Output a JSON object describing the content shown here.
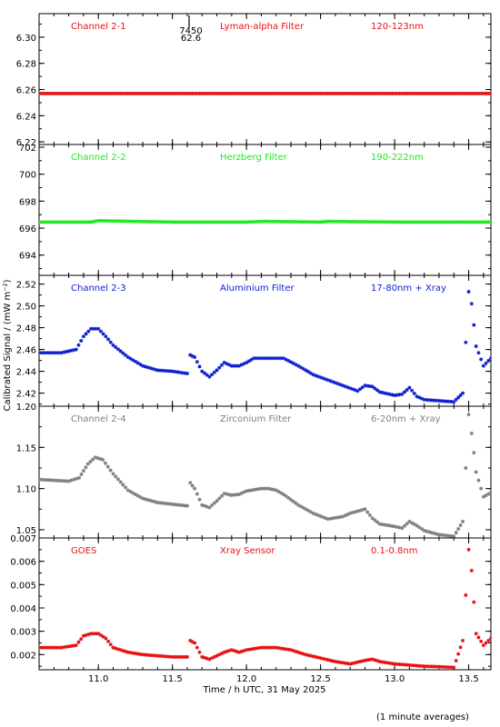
{
  "figure": {
    "ylabel": "Calibrated Signal / (mW m⁻²)",
    "xlabel": "Time / h UTC, 31 May 2025",
    "footnote": "(1 minute averages)",
    "marker_annotation": [
      "7450",
      "62.6"
    ]
  },
  "chart_data": [
    {
      "type": "scatter",
      "panel": "Channel 2-1",
      "labels": [
        "Channel 2-1",
        "Lyman-alpha Filter",
        "120-123nm"
      ],
      "color": "#e81010",
      "xlim": [
        10.6,
        13.65
      ],
      "ylim": [
        6.218,
        6.318
      ],
      "yticks": [
        6.22,
        6.24,
        6.26,
        6.28,
        6.3
      ],
      "yticklabels": [
        "6.22",
        "6.24",
        "6.26",
        "6.28",
        "6.30"
      ],
      "series": [
        {
          "x": [
            10.6,
            11.0,
            11.5,
            12.0,
            12.5,
            13.0,
            13.5,
            13.65
          ],
          "y": [
            6.257,
            6.257,
            6.257,
            6.257,
            6.257,
            6.257,
            6.257,
            6.257
          ]
        }
      ]
    },
    {
      "type": "scatter",
      "panel": "Channel 2-2",
      "labels": [
        "Channel 2-2",
        "Herzberg Filter",
        "190-222nm"
      ],
      "color": "#20e820",
      "xlim": [
        10.6,
        13.65
      ],
      "ylim": [
        692.5,
        702.2
      ],
      "yticks": [
        694,
        696,
        698,
        700,
        702
      ],
      "yticklabels": [
        "694",
        "696",
        "698",
        "700",
        "702"
      ],
      "series": [
        {
          "x": [
            10.6,
            10.95,
            11.0,
            11.5,
            12.0,
            12.12,
            12.5,
            12.55,
            13.0,
            13.5,
            13.65
          ],
          "y": [
            696.45,
            696.45,
            696.55,
            696.45,
            696.45,
            696.5,
            696.45,
            696.5,
            696.45,
            696.45,
            696.45
          ]
        }
      ]
    },
    {
      "type": "scatter",
      "panel": "Channel 2-3",
      "labels": [
        "Channel 2-3",
        "Aluminium Filter",
        "17-80nm + Xray"
      ],
      "color": "#1020d0",
      "xlim": [
        10.6,
        13.65
      ],
      "ylim": [
        2.408,
        2.528
      ],
      "yticks": [
        2.42,
        2.44,
        2.46,
        2.48,
        2.5,
        2.52
      ],
      "yticklabels": [
        "2.42",
        "2.44",
        "2.46",
        "2.48",
        "2.50",
        "2.52"
      ],
      "series": [
        {
          "x": [
            10.6,
            10.75,
            10.85,
            10.9,
            10.95,
            11.0,
            11.05,
            11.1,
            11.2,
            11.3,
            11.4,
            11.5,
            11.6,
            11.62,
            11.65,
            11.7,
            11.75,
            11.8,
            11.85,
            11.9,
            11.95,
            12.0,
            12.05,
            12.1,
            12.15,
            12.25,
            12.35,
            12.45,
            12.55,
            12.65,
            12.75,
            12.8,
            12.85,
            12.9,
            13.0,
            13.05,
            13.1,
            13.15,
            13.2,
            13.3,
            13.4,
            13.46,
            13.5,
            13.52,
            13.55,
            13.6,
            13.65
          ],
          "y": [
            2.457,
            2.457,
            2.46,
            2.472,
            2.479,
            2.479,
            2.472,
            2.464,
            2.453,
            2.445,
            2.441,
            2.44,
            2.438,
            2.455,
            2.453,
            2.44,
            2.435,
            2.441,
            2.448,
            2.445,
            2.445,
            2.448,
            2.452,
            2.452,
            2.452,
            2.452,
            2.445,
            2.437,
            2.432,
            2.427,
            2.422,
            2.427,
            2.426,
            2.421,
            2.418,
            2.419,
            2.425,
            2.417,
            2.414,
            2.413,
            2.412,
            2.42,
            2.513,
            2.502,
            2.463,
            2.445,
            2.452
          ]
        }
      ]
    },
    {
      "type": "scatter",
      "panel": "Channel 2-4",
      "labels": [
        "Channel 2-4",
        "Zirconium Filter",
        "6-20nm + Xray"
      ],
      "color": "#808080",
      "xlim": [
        10.6,
        13.65
      ],
      "ylim": [
        1.04,
        1.2
      ],
      "yticks": [
        1.05,
        1.1,
        1.15,
        1.2
      ],
      "yticklabels": [
        "1.05",
        "1.10",
        "1.15",
        "1.20"
      ],
      "series": [
        {
          "x": [
            10.6,
            10.8,
            10.87,
            10.93,
            10.98,
            11.03,
            11.1,
            11.2,
            11.3,
            11.4,
            11.5,
            11.6,
            11.62,
            11.65,
            11.7,
            11.75,
            11.8,
            11.85,
            11.9,
            11.95,
            12.0,
            12.1,
            12.15,
            12.2,
            12.25,
            12.35,
            12.45,
            12.55,
            12.65,
            12.7,
            12.8,
            12.85,
            12.9,
            13.0,
            13.05,
            13.1,
            13.15,
            13.2,
            13.3,
            13.4,
            13.46,
            13.5,
            13.52,
            13.55,
            13.6,
            13.65
          ],
          "y": [
            1.111,
            1.109,
            1.113,
            1.13,
            1.138,
            1.135,
            1.118,
            1.098,
            1.088,
            1.083,
            1.081,
            1.079,
            1.107,
            1.1,
            1.08,
            1.077,
            1.085,
            1.094,
            1.092,
            1.093,
            1.097,
            1.1,
            1.1,
            1.098,
            1.093,
            1.08,
            1.07,
            1.063,
            1.066,
            1.07,
            1.075,
            1.064,
            1.057,
            1.054,
            1.052,
            1.06,
            1.055,
            1.049,
            1.044,
            1.042,
            1.06,
            1.19,
            1.167,
            1.12,
            1.09,
            1.095
          ]
        }
      ]
    },
    {
      "type": "scatter",
      "panel": "GOES",
      "labels": [
        "GOES",
        "Xray Sensor",
        "0.1-0.8nm"
      ],
      "color": "#e81010",
      "xlim": [
        10.6,
        13.65
      ],
      "ylim": [
        0.00135,
        0.007
      ],
      "yticks": [
        0.002,
        0.003,
        0.004,
        0.005,
        0.006,
        0.007
      ],
      "yticklabels": [
        "0.002",
        "0.003",
        "0.004",
        "0.005",
        "0.006",
        "0.007"
      ],
      "xticks": [
        11.0,
        11.5,
        12.0,
        12.5,
        13.0,
        13.5
      ],
      "xticklabels": [
        "11.0",
        "11.5",
        "12.0",
        "12.5",
        "13.0",
        "13.5"
      ],
      "series": [
        {
          "x": [
            10.6,
            10.75,
            10.85,
            10.9,
            10.95,
            11.0,
            11.05,
            11.1,
            11.2,
            11.3,
            11.4,
            11.5,
            11.6,
            11.62,
            11.65,
            11.7,
            11.75,
            11.8,
            11.85,
            11.9,
            11.95,
            12.0,
            12.1,
            12.15,
            12.2,
            12.3,
            12.4,
            12.5,
            12.6,
            12.7,
            12.8,
            12.85,
            12.9,
            13.0,
            13.1,
            13.2,
            13.3,
            13.4,
            13.46,
            13.5,
            13.52,
            13.55,
            13.6,
            13.65
          ],
          "y": [
            0.0023,
            0.0023,
            0.0024,
            0.0028,
            0.0029,
            0.0029,
            0.0027,
            0.0023,
            0.0021,
            0.002,
            0.00195,
            0.0019,
            0.0019,
            0.0026,
            0.0025,
            0.0019,
            0.0018,
            0.00195,
            0.0021,
            0.0022,
            0.0021,
            0.0022,
            0.0023,
            0.0023,
            0.0023,
            0.0022,
            0.002,
            0.00185,
            0.0017,
            0.0016,
            0.00175,
            0.0018,
            0.0017,
            0.0016,
            0.00155,
            0.0015,
            0.00148,
            0.00145,
            0.0026,
            0.0065,
            0.0056,
            0.0029,
            0.0024,
            0.0027
          ]
        }
      ]
    }
  ]
}
